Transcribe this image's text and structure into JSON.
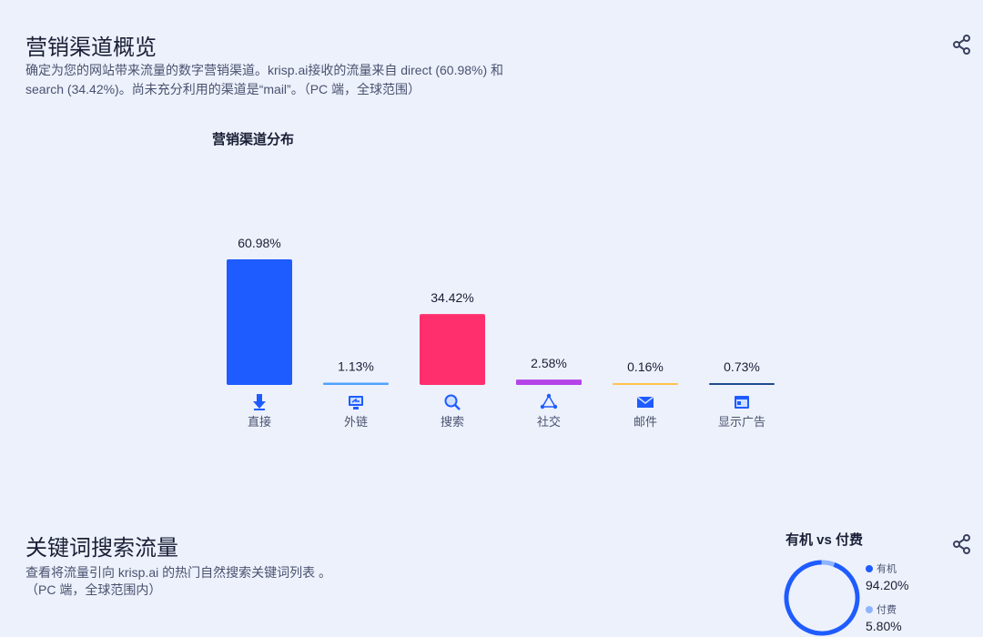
{
  "marketing": {
    "title": "营销渠道概览",
    "desc_line1": "确定为您的网站带来流量的数字营销渠道。krisp.ai接收的流量来自 direct (60.98%) 和",
    "desc_line2": "search (34.42%)。尚未充分利用的渠道是“mail”。（PC 端，全球范围）"
  },
  "keywords": {
    "title": "关键词搜索流量",
    "desc_line1": "查看将流量引向 krisp.ai 的热门自然搜索关键词列表 。",
    "desc_line2": "（PC 端，全球范围内）"
  },
  "icons": {
    "share": "share-icon",
    "direct": "arrow-down-icon",
    "referral": "link-monitor-icon",
    "search": "magnifier-icon",
    "social": "social-network-icon",
    "mail": "envelope-icon",
    "display": "display-ad-icon"
  },
  "chart_data": [
    {
      "type": "bar",
      "title": "营销渠道分布",
      "categories": [
        "直接",
        "外链",
        "搜索",
        "社交",
        "邮件",
        "显示广告"
      ],
      "values": [
        60.98,
        1.13,
        34.42,
        2.58,
        0.16,
        0.73
      ],
      "data_labels": [
        "60.98%",
        "1.13%",
        "34.42%",
        "2.58%",
        "0.16%",
        "0.73%"
      ],
      "colors": [
        "#1f5cff",
        "#4fa3ff",
        "#ff2f6d",
        "#b543e8",
        "#ffc24d",
        "#1e4b8f"
      ],
      "ylim": [
        0,
        60.98
      ],
      "grid": false,
      "legend": "none"
    },
    {
      "type": "pie",
      "title": "有机 vs 付费",
      "categories": [
        "有机",
        "付费"
      ],
      "values": [
        94.2,
        5.8
      ],
      "data_labels": [
        "94.20%",
        "5.80%"
      ],
      "colors": [
        "#1f5cff",
        "#8fb4ff"
      ],
      "legend": "right"
    }
  ]
}
